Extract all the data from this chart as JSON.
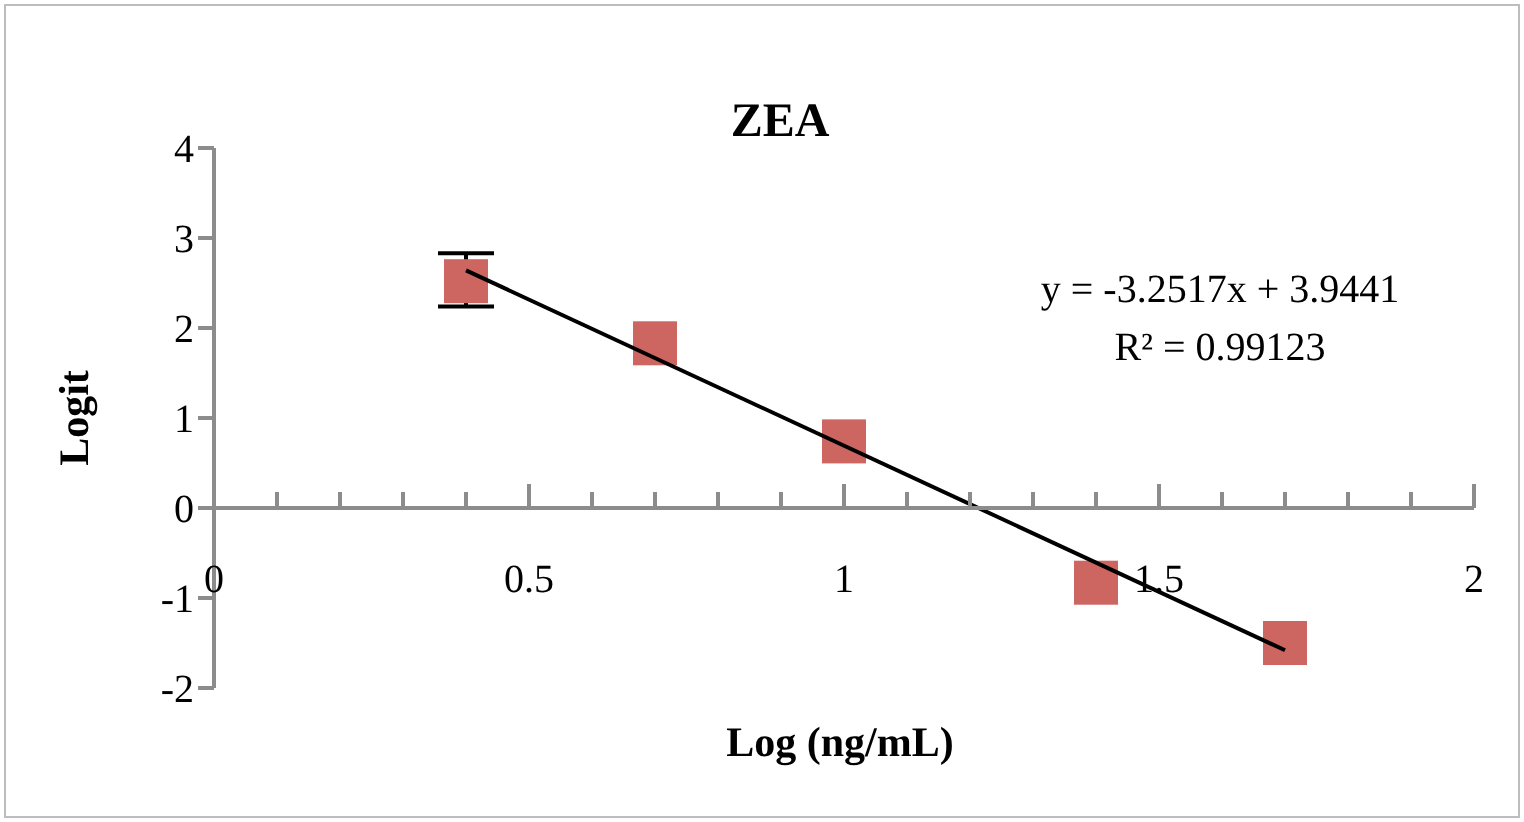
{
  "chart_data": {
    "type": "scatter",
    "title": "ZEA",
    "xlabel": "Log (ng/mL)",
    "ylabel": "Logit",
    "annotations": [
      "y = -3.2517x + 3.9441",
      "R² = 0.99123"
    ],
    "series": [
      {
        "color": "#cd6660",
        "marker": "square",
        "x": [
          0.4,
          0.7,
          1.0,
          1.4,
          1.7
        ],
        "values": [
          2.52,
          1.83,
          0.74,
          -0.83,
          -1.5
        ],
        "errors": [
          [
            2.24,
            2.83
          ],
          null,
          null,
          null,
          null
        ]
      },
      {
        "type": "line",
        "color": "#000000",
        "marker": "none",
        "x": [
          0.4,
          1.7
        ],
        "values": [
          2.64,
          -1.58
        ]
      }
    ],
    "xlim": [
      0,
      2
    ],
    "xticks": [
      0,
      {
        "value": 0.1,
        "label": null
      },
      {
        "value": 0.2,
        "label": null
      },
      {
        "value": 0.3,
        "label": null
      },
      {
        "value": 0.4,
        "label": null
      },
      0.5,
      {
        "value": 0.6,
        "label": null
      },
      {
        "value": 0.7,
        "label": null
      },
      {
        "value": 0.8,
        "label": null
      },
      {
        "value": 0.9,
        "label": null
      },
      1,
      {
        "value": 1.1,
        "label": null
      },
      {
        "value": 1.2,
        "label": null
      },
      {
        "value": 1.3,
        "label": null
      },
      {
        "value": 1.4,
        "label": null
      },
      1.5,
      {
        "value": 1.6,
        "label": null
      },
      {
        "value": 1.7,
        "label": null
      },
      {
        "value": 1.8,
        "label": null
      },
      {
        "value": 1.9,
        "label": null
      },
      2
    ],
    "ylim": [
      -2,
      4
    ],
    "yticks": [
      -2,
      -1,
      0,
      1,
      2,
      3,
      4
    ],
    "grid": false,
    "legend": false
  }
}
